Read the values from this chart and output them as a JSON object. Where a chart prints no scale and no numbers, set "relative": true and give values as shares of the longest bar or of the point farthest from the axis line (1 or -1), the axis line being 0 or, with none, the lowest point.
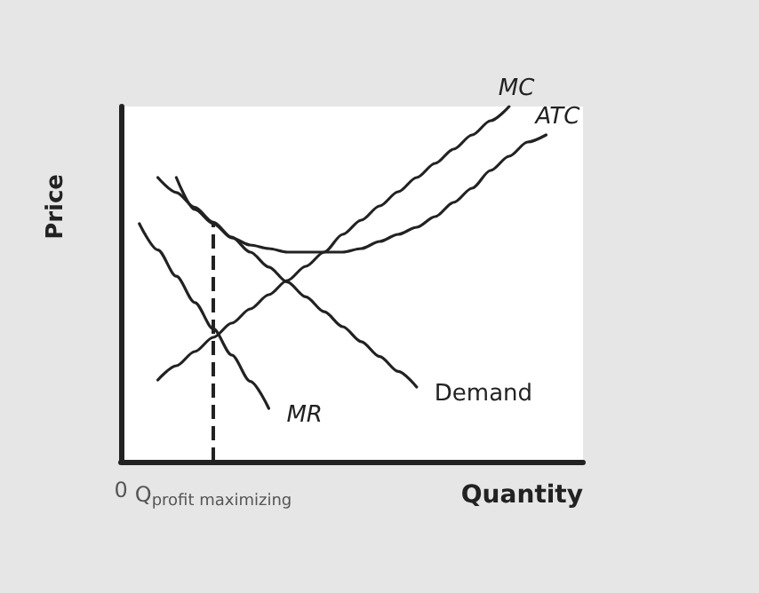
{
  "chart_data": {
    "type": "line",
    "relative": true,
    "xlabel": "Quantity",
    "ylabel": "Price",
    "categories": [
      "0",
      null,
      null,
      null,
      null,
      "Q$_{profit maximizing}$",
      null,
      null,
      null,
      null,
      null,
      null,
      null,
      null,
      null,
      null,
      null,
      null,
      null,
      null,
      null,
      null,
      null,
      null,
      null,
      null
    ],
    "series": [
      {
        "name": "MC",
        "color": "#222222",
        "values": [
          null,
          null,
          0.23,
          0.27,
          0.31,
          0.35,
          0.39,
          0.43,
          0.47,
          0.51,
          0.55,
          0.59,
          0.64,
          0.68,
          0.72,
          0.76,
          0.8,
          0.84,
          0.88,
          0.92,
          0.96,
          1,
          null,
          null,
          null,
          null
        ]
      },
      {
        "name": "ATC",
        "color": "#222222",
        "values": [
          null,
          null,
          null,
          0.8,
          0.71,
          0.67,
          0.63,
          0.61,
          0.6,
          0.59,
          0.59,
          0.59,
          0.59,
          0.6,
          0.62,
          0.64,
          0.66,
          0.69,
          0.73,
          0.77,
          0.82,
          0.86,
          0.9,
          0.92,
          null,
          null
        ]
      },
      {
        "name": "Demand",
        "color": "#222222",
        "values": [
          null,
          null,
          0.8,
          0.758,
          0.716,
          0.674,
          0.632,
          0.59,
          0.548,
          0.506,
          0.464,
          0.422,
          0.38,
          0.338,
          0.296,
          0.254,
          0.21,
          null,
          null,
          null,
          null,
          null,
          null,
          null,
          null,
          null
        ]
      },
      {
        "name": "MR",
        "color": "#222222",
        "values": [
          null,
          0.67,
          0.596,
          0.522,
          0.448,
          0.374,
          0.3,
          0.226,
          0.15,
          null,
          null,
          null,
          null,
          null,
          null,
          null,
          null,
          null,
          null,
          null,
          null,
          null,
          null,
          null,
          null,
          null
        ]
      }
    ],
    "ref_lines": [
      {
        "axis": "x",
        "value": "Q$_{profit maximizing}$",
        "line_style": "dashed",
        "color": "#222222"
      }
    ],
    "legend": false,
    "grid": false,
    "marker": "none",
    "line_style": "solid"
  }
}
